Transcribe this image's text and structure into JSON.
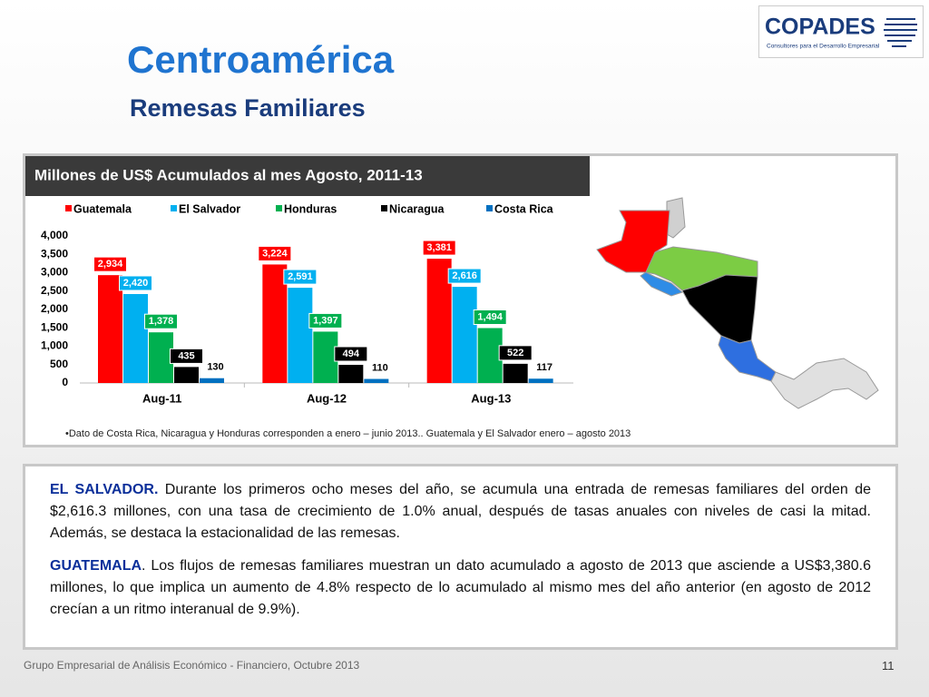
{
  "header": {
    "title": "Centroamérica",
    "subtitle": "Remesas Familiares",
    "logo": "COPADES",
    "logo_tagline": "Consultores para el Desarrollo Empresarial"
  },
  "chart_data": {
    "type": "bar",
    "title": "Millones de US$ Acumulados al mes  Agosto, 2011-13",
    "categories": [
      "Aug-11",
      "Aug-12",
      "Aug-13"
    ],
    "series": [
      {
        "name": "Guatemala",
        "color": "#ff0000",
        "values": [
          2934,
          3224,
          3381
        ],
        "value_labels": [
          "2,934",
          "3,224",
          "3,381"
        ]
      },
      {
        "name": "El Salvador",
        "color": "#00b0f0",
        "values": [
          2420,
          2591,
          2616
        ],
        "value_labels": [
          "2,420",
          "2,591",
          "2,616"
        ]
      },
      {
        "name": "Honduras",
        "color": "#00b050",
        "values": [
          1378,
          1397,
          1494
        ],
        "value_labels": [
          "1,378",
          "1,397",
          "1,494"
        ]
      },
      {
        "name": "Nicaragua",
        "color": "#000000",
        "values": [
          435,
          494,
          522
        ]
      },
      {
        "name": "Costa Rica",
        "color": "#0070c0",
        "values": [
          130,
          110,
          117
        ]
      }
    ],
    "ylim": [
      0,
      4000
    ],
    "yticks": [
      0,
      500,
      {
        "value": 1000,
        "label": "1,000"
      },
      {
        "value": 1500,
        "label": "1,500"
      },
      {
        "value": 2000,
        "label": "2,000"
      },
      {
        "value": 2500,
        "label": "2,500"
      },
      {
        "value": 3000,
        "label": "3,000"
      },
      {
        "value": 3500,
        "label": "3,500"
      },
      {
        "value": 4000,
        "label": "4,000"
      }
    ],
    "legend": "top",
    "note": "•Dato de Costa Rica, Nicaragua y Honduras corresponden a enero – junio 2013.. Guatemala y El Salvador enero – agosto 2013"
  },
  "body": {
    "paragraphs": [
      {
        "lead": "EL SALVADOR.",
        "text": " Durante los primeros ocho meses del año, se acumula una entrada de remesas familiares del orden de $2,616.3 millones, con una tasa de crecimiento de 1.0% anual, después de tasas anuales con niveles de casi la mitad. Además, se destaca la estacionalidad de las remesas."
      },
      {
        "lead": "GUATEMALA",
        "text": ". Los flujos de remesas familiares  muestran un dato acumulado a agosto de 2013 que asciende a US$3,380.6 millones, lo que implica un aumento de 4.8% respecto de lo acumulado al mismo mes del año anterior (en agosto de 2012 crecían a un ritmo interanual de 9.9%)."
      }
    ]
  },
  "footer": {
    "text": "Grupo Empresarial de Análisis Económico - Financiero, Octubre 2013",
    "page": "11"
  }
}
